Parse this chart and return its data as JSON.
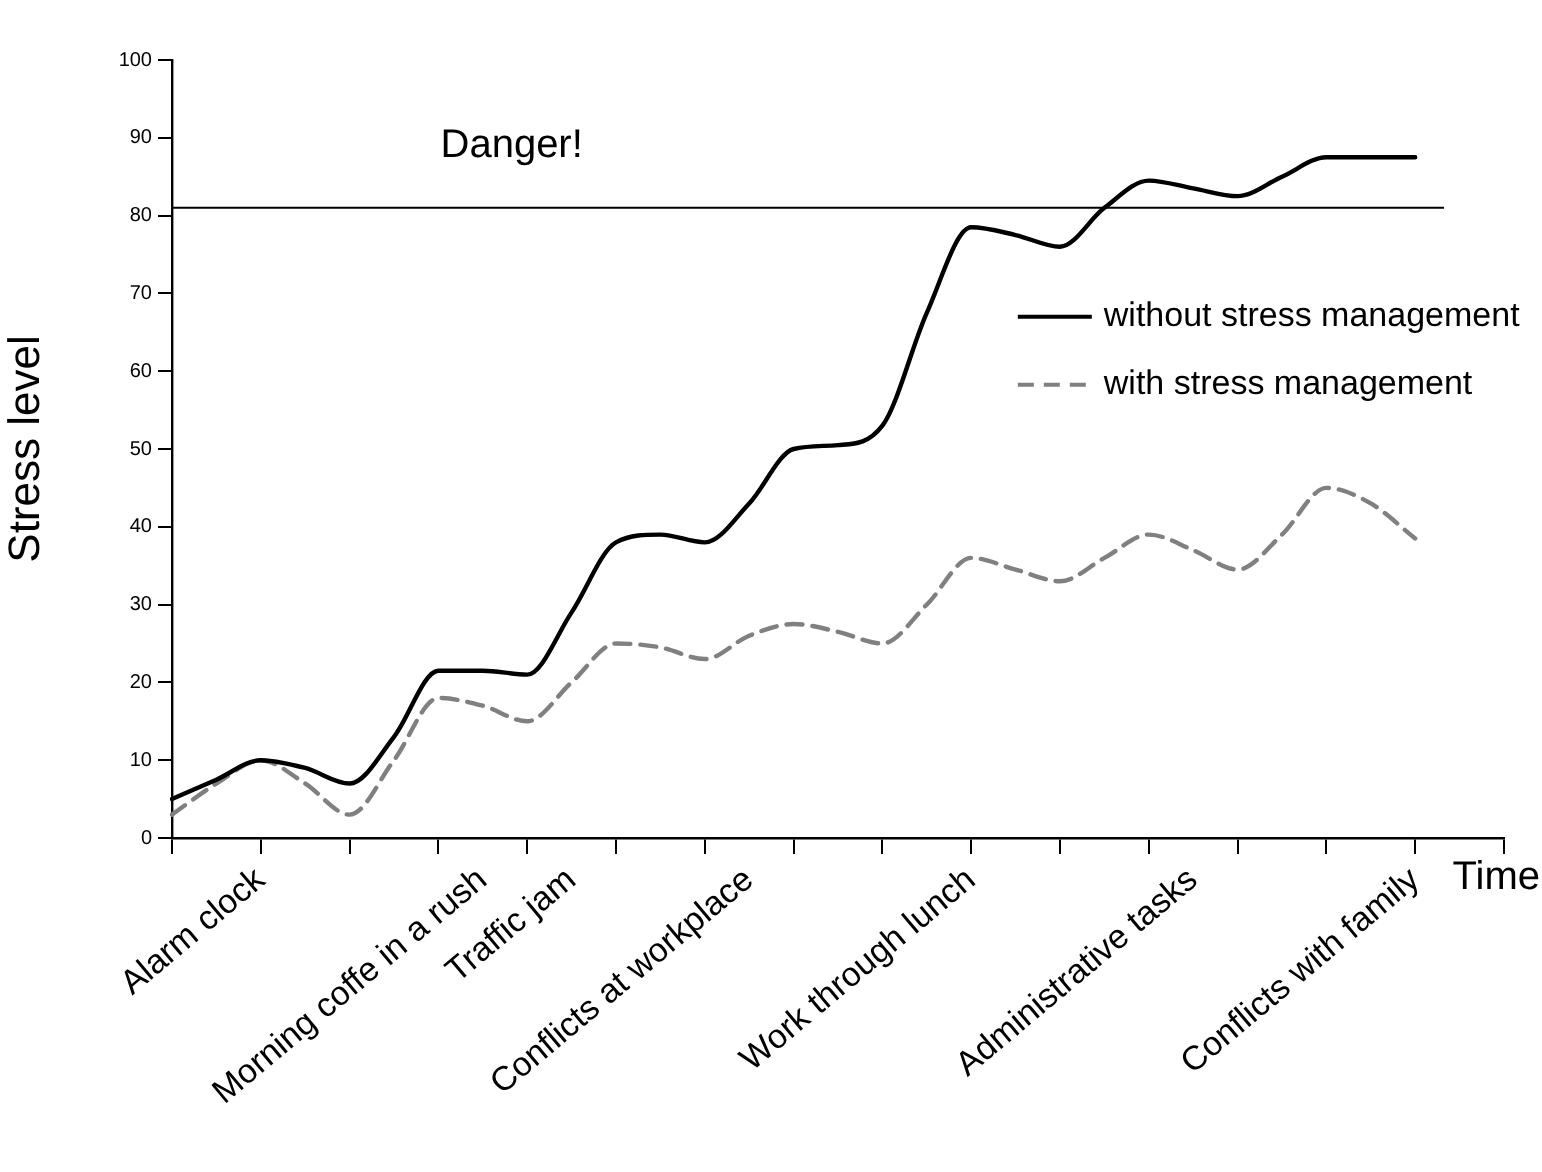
{
  "chart_data": {
    "type": "line",
    "xlabel": "Time",
    "ylabel": "Stress level",
    "categories": [
      null,
      null,
      "Alarm clock",
      null,
      null,
      null,
      null,
      "Morning coffe in a rush",
      null,
      "Traffic jam",
      null,
      null,
      null,
      "Conflicts at workplace",
      null,
      null,
      null,
      null,
      "Work through lunch",
      null,
      null,
      null,
      null,
      "Administrative tasks",
      null,
      null,
      null,
      null,
      "Conflicts with family",
      null,
      null
    ],
    "ylim": [
      0,
      100
    ],
    "yticks": [
      0,
      10,
      20,
      30,
      40,
      50,
      60,
      70,
      80,
      90,
      100
    ],
    "series": [
      {
        "name": "without stress management",
        "color": "#000000",
        "line_style": "solid",
        "values": [
          5,
          7.5,
          10,
          9,
          7,
          13,
          21.5,
          21.5,
          21,
          29,
          38,
          39,
          38,
          43,
          50,
          50.5,
          53,
          67.5,
          78.5,
          77.5,
          76,
          81,
          84.5,
          83.5,
          82.5,
          85,
          87.5,
          87.5,
          87.5,
          null,
          null
        ]
      },
      {
        "name": "with stress management",
        "color": "#808080",
        "line_style": "dashed",
        "values": [
          3,
          7,
          10,
          7,
          3,
          10,
          18,
          17,
          15,
          20,
          25,
          24.5,
          23,
          26,
          27.5,
          26.5,
          25,
          30,
          36,
          34.5,
          33,
          36,
          39,
          37,
          34.5,
          39,
          45,
          43,
          38.5,
          null,
          null
        ]
      }
    ],
    "ref_lines": [
      {
        "axis": "y",
        "value": 81,
        "label": "Danger!",
        "color": "#000000"
      }
    ],
    "grid": false,
    "legend": "center right",
    "marker": "none"
  }
}
